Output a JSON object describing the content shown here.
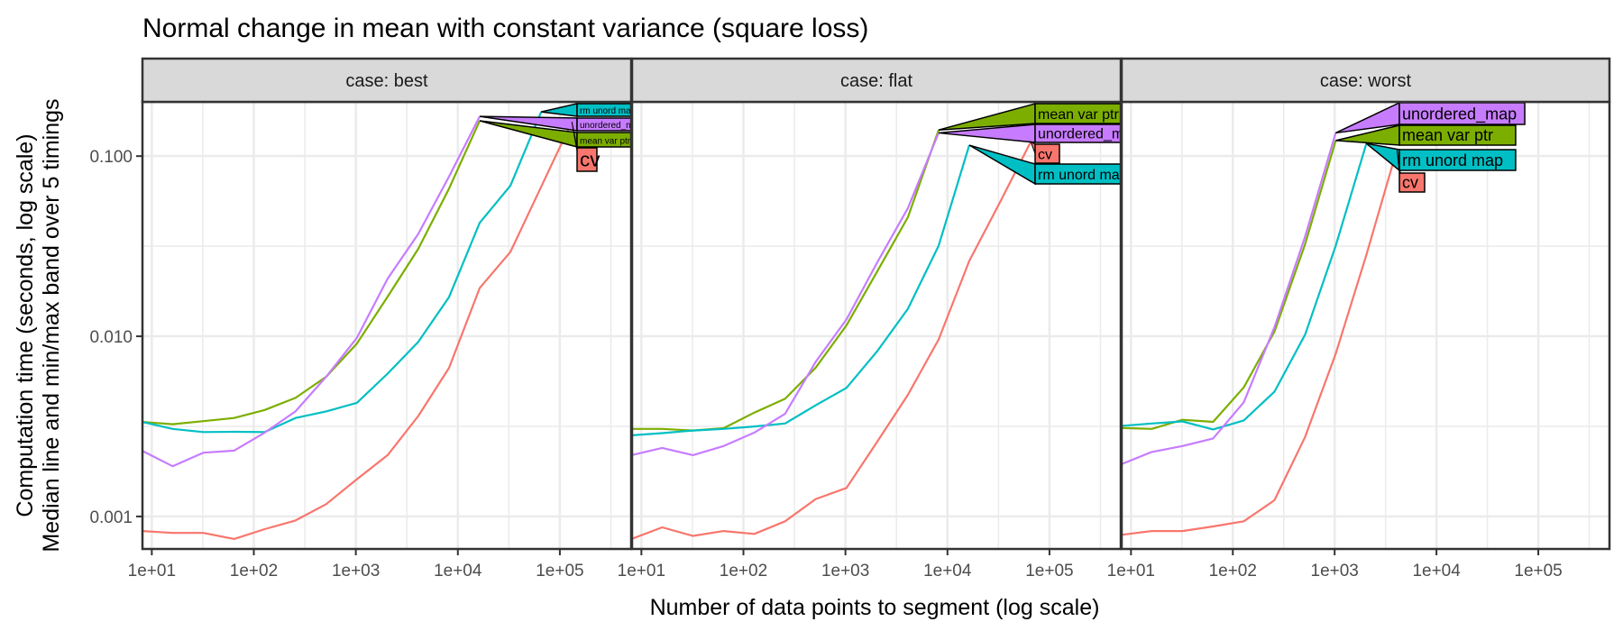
{
  "chart_data": {
    "type": "line",
    "title": "Normal change in mean with constant variance (square loss)",
    "xlabel": "Number of data points to segment (log scale)",
    "ylabel_lines": [
      "Computation time (seconds, log scale)",
      "Median line and min/max band over 5 timings"
    ],
    "x_scale": "log10",
    "y_scale": "log10",
    "x_ticks": [
      10,
      100,
      1000,
      10000,
      100000
    ],
    "x_tick_labels": [
      "1e+01",
      "1e+02",
      "1e+03",
      "1e+04",
      "1e+05"
    ],
    "y_ticks": [
      0.001,
      0.01,
      0.1
    ],
    "y_tick_labels": [
      "0.001",
      "0.010",
      "0.100"
    ],
    "xlim": [
      8.1,
      500000
    ],
    "ylim": [
      0.00066,
      0.2
    ],
    "grid": true,
    "legend": "direct labels at line ends",
    "series_colors": {
      "cv": "#F8766D",
      "mean var ptr": "#7CAE00",
      "rm unord map": "#00BFC4",
      "unordered_map": "#C77CFF"
    },
    "strip_fill": "#D9D9D9",
    "panels": [
      {
        "strip": "case: best",
        "series": [
          {
            "name": "cv",
            "label": "cv",
            "x": [
              8,
              16,
              32,
              64,
              128,
              256,
              512,
              1024,
              2048,
              4096,
              8192,
              16384,
              32768,
              65536,
              131072
            ],
            "y": [
              0.00083,
              0.00081,
              0.00081,
              0.00075,
              0.00085,
              0.00095,
              0.00117,
              0.00161,
              0.00219,
              0.00361,
              0.00668,
              0.0185,
              0.0294,
              0.0676,
              0.155
            ]
          },
          {
            "name": "mean var ptr",
            "label": "mean var ptr",
            "x": [
              8,
              16,
              32,
              64,
              128,
              256,
              512,
              1024,
              2048,
              4096,
              8192,
              16384
            ],
            "y": [
              0.00335,
              0.00325,
              0.00338,
              0.00352,
              0.0039,
              0.00455,
              0.00596,
              0.0091,
              0.0166,
              0.0306,
              0.066,
              0.157
            ]
          },
          {
            "name": "rm unord map",
            "label": "rm unord ma",
            "x": [
              8,
              16,
              32,
              64,
              128,
              256,
              512,
              1024,
              2048,
              4096,
              8192,
              16384,
              32768,
              65536
            ],
            "y": [
              0.00335,
              0.00306,
              0.00294,
              0.00295,
              0.00294,
              0.00352,
              0.00383,
              0.00427,
              0.0062,
              0.0093,
              0.0165,
              0.0426,
              0.0686,
              0.176
            ]
          },
          {
            "name": "unordered_map",
            "label": "unordered_map",
            "x": [
              8,
              16,
              32,
              64,
              128,
              256,
              512,
              1024,
              2048,
              4096,
              8192,
              16384
            ],
            "y": [
              0.00232,
              0.0019,
              0.00226,
              0.00232,
              0.00292,
              0.00383,
              0.00596,
              0.0098,
              0.0209,
              0.037,
              0.077,
              0.166
            ]
          }
        ],
        "label_order": [
          "rm unord map",
          "unordered_map",
          "mean var ptr",
          "cv"
        ],
        "label_size": "small"
      },
      {
        "strip": "case: flat",
        "series": [
          {
            "name": "cv",
            "label": "cv",
            "x": [
              8,
              16,
              32,
              64,
              128,
              256,
              512,
              1024,
              2048,
              4096,
              8192,
              16384,
              32768,
              65536
            ],
            "y": [
              0.00075,
              0.00087,
              0.00078,
              0.00083,
              0.0008,
              0.00094,
              0.00125,
              0.00144,
              0.0026,
              0.00473,
              0.0096,
              0.0262,
              0.0555,
              0.12
            ]
          },
          {
            "name": "mean var ptr",
            "label": "mean var ptr",
            "x": [
              8,
              16,
              32,
              64,
              128,
              256,
              512,
              1024,
              2048,
              4096,
              8192
            ],
            "y": [
              0.00306,
              0.00306,
              0.003,
              0.00309,
              0.00377,
              0.0045,
              0.0067,
              0.0115,
              0.0229,
              0.0458,
              0.1396
            ]
          },
          {
            "name": "rm unord map",
            "label": "rm unord ma",
            "x": [
              8,
              16,
              32,
              64,
              128,
              256,
              512,
              1024,
              2048,
              4096,
              8192,
              16384
            ],
            "y": [
              0.00282,
              0.0029,
              0.003,
              0.00306,
              0.00316,
              0.00328,
              0.00414,
              0.00517,
              0.00826,
              0.0142,
              0.0318,
              0.115
            ]
          },
          {
            "name": "unordered_map",
            "label": "unordered_ma",
            "x": [
              8,
              16,
              32,
              64,
              128,
              256,
              512,
              1024,
              2048,
              4096,
              8192
            ],
            "y": [
              0.00219,
              0.0024,
              0.00219,
              0.00246,
              0.00292,
              0.00371,
              0.00722,
              0.0124,
              0.0257,
              0.0514,
              0.1345
            ]
          }
        ],
        "label_order": [
          "mean var ptr",
          "unordered_map",
          "cv",
          "rm unord map"
        ],
        "label_size": "medium"
      },
      {
        "strip": "case: worst",
        "series": [
          {
            "name": "cv",
            "label": "cv",
            "x": [
              8,
              16,
              32,
              64,
              128,
              256,
              512,
              1024,
              2048,
              4096
            ],
            "y": [
              0.00079,
              0.00083,
              0.00083,
              0.00088,
              0.00094,
              0.00123,
              0.00276,
              0.008,
              0.0283,
              0.109
            ]
          },
          {
            "name": "mean var ptr",
            "label": "mean var ptr",
            "x": [
              8,
              16,
              32,
              64,
              128,
              256,
              512,
              1024
            ],
            "y": [
              0.0031,
              0.00306,
              0.00344,
              0.00335,
              0.0052,
              0.0106,
              0.0324,
              0.122
            ]
          },
          {
            "name": "rm unord map",
            "label": "rm unord map",
            "x": [
              8,
              16,
              32,
              64,
              128,
              256,
              512,
              1024,
              2048
            ],
            "y": [
              0.00318,
              0.00328,
              0.00337,
              0.00304,
              0.00341,
              0.00492,
              0.0102,
              0.0318,
              0.1175
            ]
          },
          {
            "name": "unordered_map",
            "label": "unordered_map",
            "x": [
              8,
              16,
              32,
              64,
              128,
              256,
              512,
              1024
            ],
            "y": [
              0.00195,
              0.00228,
              0.00246,
              0.00271,
              0.0043,
              0.0112,
              0.0357,
              0.1345
            ]
          }
        ],
        "label_order": [
          "unordered_map",
          "mean var ptr",
          "rm unord map",
          "cv"
        ],
        "label_size": "large"
      }
    ]
  }
}
